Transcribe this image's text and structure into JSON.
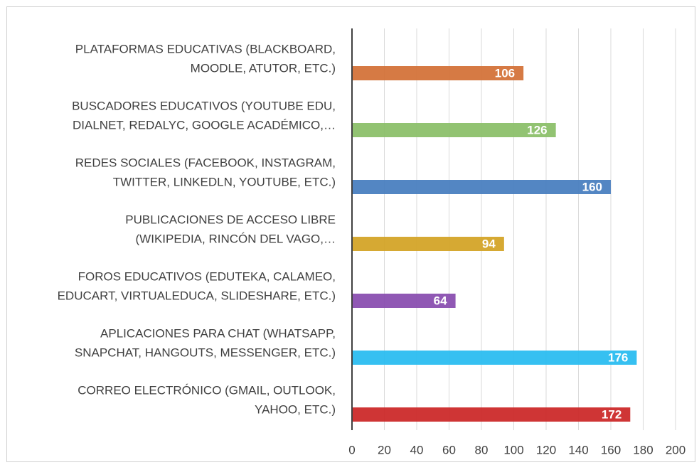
{
  "chart_data": {
    "type": "barh",
    "categories": [
      [
        "PLATAFORMAS EDUCATIVAS (BLACKBOARD,",
        "MOODLE, ATUTOR, ETC.)"
      ],
      [
        "BUSCADORES EDUCATIVOS (YOUTUBE EDU,",
        "DIALNET, REDALYC, GOOGLE ACADÉMICO,…"
      ],
      [
        "REDES SOCIALES (FACEBOOK, INSTAGRAM,",
        "TWITTER, LINKEDLN, YOUTUBE, ETC.)"
      ],
      [
        "PUBLICACIONES DE ACCESO LIBRE",
        "(WIKIPEDIA, RINCÓN DEL VAGO,…"
      ],
      [
        "FOROS EDUCATIVOS (EDUTEKA, CALAMEO,",
        "EDUCART, VIRTUALEDUCA, SLIDESHARE, ETC.)"
      ],
      [
        "APLICACIONES PARA CHAT (WHATSAPP,",
        "SNAPCHAT, HANGOUTS, MESSENGER, ETC.)"
      ],
      [
        "CORREO ELECTRÓNICO (GMAIL, OUTLOOK,",
        "YAHOO, ETC.)"
      ]
    ],
    "values": [
      106,
      126,
      160,
      94,
      64,
      176,
      172
    ],
    "colors": [
      "#d4733a",
      "#8cc06a",
      "#4a80c0",
      "#d4a428",
      "#8a4fb0",
      "#2bbdf0",
      "#cc2a2a"
    ],
    "xlim": [
      0,
      200
    ],
    "xticks": [
      0,
      20,
      40,
      60,
      80,
      100,
      120,
      140,
      160,
      180,
      200
    ],
    "grid": true
  }
}
